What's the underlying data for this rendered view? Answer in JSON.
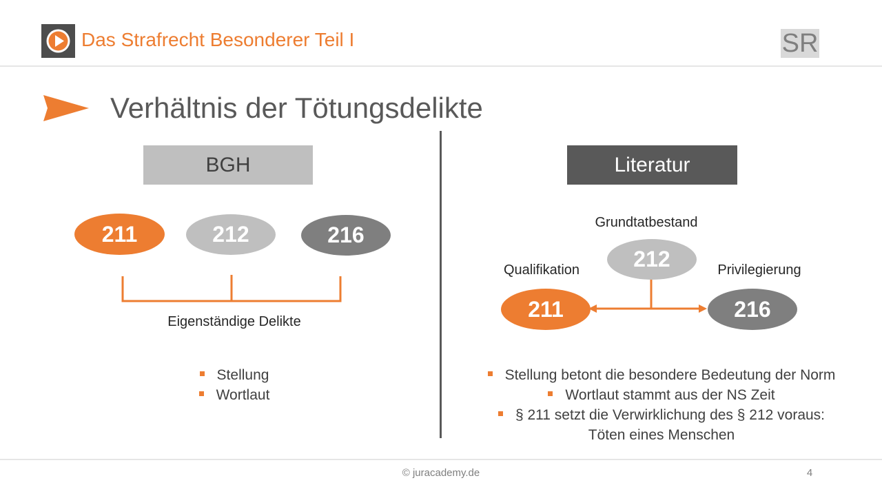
{
  "header": {
    "title": "Das Strafrecht Besonderer Teil I",
    "badge": "SR"
  },
  "slide_title": "Verhältnis der Tötungsdelikte",
  "left": {
    "heading": "BGH",
    "nodes": [
      "211",
      "212",
      "216"
    ],
    "bracket_label": "Eigenständige Delikte",
    "bullets": [
      "Stellung",
      "Wortlaut"
    ]
  },
  "right": {
    "heading": "Literatur",
    "top_label": "Grundtatbestand",
    "left_label": "Qualifikation",
    "right_label": "Privilegierung",
    "node_top": "212",
    "node_left": "211",
    "node_right": "216",
    "bullets": [
      "Stellung betont die besondere Bedeutung der Norm",
      "Wortlaut stammt aus der NS Zeit",
      "§ 211 setzt die Verwirklichung des § 212 voraus:"
    ],
    "bullet_continuation": "Töten eines Menschen"
  },
  "footer": {
    "copyright": "© juracademy.de",
    "page": "4"
  },
  "colors": {
    "accent": "#ed7d31",
    "dark_gray": "#595959",
    "light_gray": "#bfbfbf",
    "mid_gray": "#7f7f7f"
  }
}
